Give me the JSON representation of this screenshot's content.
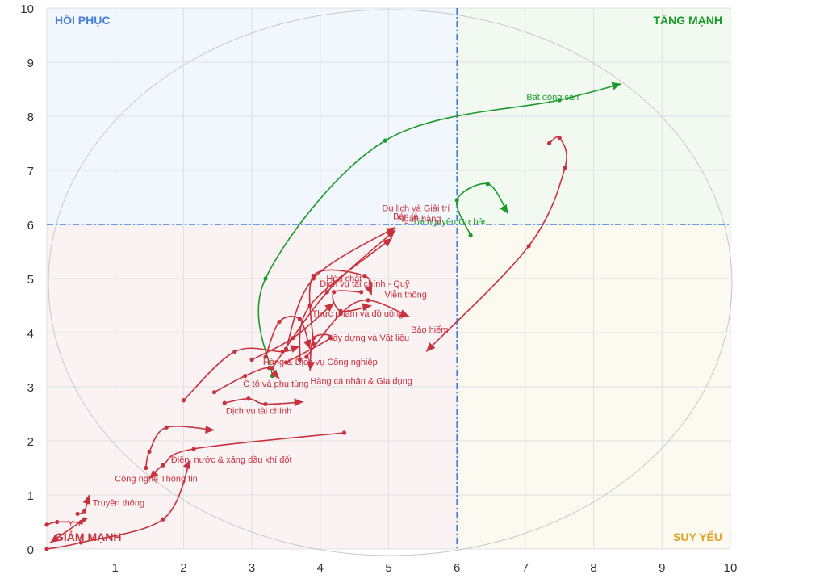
{
  "chart_data": {
    "type": "scatter",
    "xlim": [
      0,
      10
    ],
    "ylim": [
      0,
      10
    ],
    "x_ticks": [
      "1",
      "2",
      "3",
      "4",
      "5",
      "6",
      "7",
      "8",
      "9",
      "10"
    ],
    "y_ticks": [
      "0",
      "1",
      "2",
      "3",
      "4",
      "5",
      "6",
      "7",
      "8",
      "9",
      "10"
    ],
    "ref_x": 6,
    "ref_y": 6,
    "grid": true,
    "quadrants": [
      {
        "name": "HỒI PHỤC",
        "color": "#4a7fe0",
        "bg": "#f2f6fd",
        "pos": "top-left"
      },
      {
        "name": "TĂNG MẠNH",
        "color": "#1a9a2a",
        "bg": "#f1f9f1",
        "pos": "top-right"
      },
      {
        "name": "GIẢM MẠNH",
        "color": "#c8323e",
        "bg": "#fbf2f4",
        "pos": "bottom-left"
      },
      {
        "name": "SUY YẾU",
        "color": "#e0a020",
        "bg": "#fbf9f0",
        "pos": "bottom-right"
      }
    ],
    "series": [
      {
        "name": "Bất động sản",
        "color": "#1a9a2a",
        "label_xy": [
          7.4,
          8.3
        ],
        "points": [
          [
            3.3,
            3.2
          ],
          [
            3.2,
            5.0
          ],
          [
            4.95,
            7.55
          ],
          [
            7.5,
            8.3
          ],
          [
            8.4,
            8.6
          ]
        ]
      },
      {
        "name": "Tài nguyên Cơ bản",
        "color": "#1a9a2a",
        "label_xy": [
          5.9,
          6.0
        ],
        "points": [
          [
            6.2,
            5.8
          ],
          [
            6.0,
            6.45
          ],
          [
            6.45,
            6.75
          ],
          [
            6.75,
            6.2
          ]
        ]
      },
      {
        "name": "Bảo hiểm",
        "color": "#c8323e",
        "label_xy": [
          5.6,
          4.0
        ],
        "points": [
          [
            7.35,
            7.5
          ],
          [
            7.5,
            7.6
          ],
          [
            7.58,
            7.05
          ],
          [
            7.05,
            5.6
          ],
          [
            5.55,
            3.65
          ]
        ]
      },
      {
        "name": "Du lịch và Giải trí",
        "color": "#c8323e",
        "label_xy": [
          5.4,
          6.25
        ],
        "points": [
          [
            3.5,
            3.7
          ],
          [
            3.9,
            5.0
          ],
          [
            5.1,
            5.95
          ]
        ]
      },
      {
        "name": "Ngân hàng",
        "color": "#c8323e",
        "label_xy": [
          5.45,
          6.05
        ],
        "points": [
          [
            3.7,
            3.5
          ],
          [
            3.85,
            4.5
          ],
          [
            5.05,
            5.75
          ]
        ]
      },
      {
        "name": "Bán lẻ",
        "color": "#c8323e",
        "label_xy": [
          5.25,
          6.1
        ],
        "points": [
          [
            3.3,
            3.35
          ],
          [
            4.1,
            4.75
          ],
          [
            5.1,
            5.9
          ]
        ]
      },
      {
        "name": "Hóa chất",
        "color": "#c8323e",
        "label_xy": [
          4.35,
          4.95
        ],
        "points": [
          [
            3.9,
            3.8
          ],
          [
            3.9,
            5.05
          ],
          [
            4.65,
            5.05
          ],
          [
            4.75,
            4.7
          ]
        ]
      },
      {
        "name": "Dịch vụ tài chính - Quỹ",
        "color": "#c8323e",
        "label_xy": [
          4.65,
          4.85
        ],
        "points": [
          [
            3.8,
            3.55
          ],
          [
            4.3,
            4.35
          ],
          [
            4.7,
            4.6
          ],
          [
            5.3,
            4.3
          ]
        ]
      },
      {
        "name": "Viễn thông",
        "color": "#c8323e",
        "label_xy": [
          5.25,
          4.65
        ],
        "points": [
          [
            4.6,
            4.75
          ],
          [
            4.2,
            4.75
          ],
          [
            4.3,
            4.4
          ],
          [
            4.75,
            4.5
          ]
        ]
      },
      {
        "name": "Thực phẩm và đồ uống",
        "color": "#c8323e",
        "label_xy": [
          4.55,
          4.3
        ],
        "points": [
          [
            3.0,
            3.5
          ],
          [
            3.6,
            3.9
          ],
          [
            4.2,
            4.55
          ]
        ]
      },
      {
        "name": "Xây dựng và Vật liệu",
        "color": "#c8323e",
        "label_xy": [
          4.7,
          3.85
        ],
        "points": [
          [
            3.2,
            3.55
          ],
          [
            3.4,
            4.2
          ],
          [
            3.7,
            4.25
          ],
          [
            3.85,
            3.7
          ]
        ]
      },
      {
        "name": "Hàng & Dịch vụ Công nghiệp",
        "color": "#c8323e",
        "label_xy": [
          4.0,
          3.4
        ],
        "points": [
          [
            2.0,
            2.75
          ],
          [
            2.75,
            3.65
          ],
          [
            3.45,
            3.65
          ],
          [
            3.7,
            3.75
          ]
        ]
      },
      {
        "name": "Ô tô và phụ tùng",
        "color": "#c8323e",
        "label_xy": [
          3.35,
          3.0
        ],
        "points": [
          [
            2.45,
            2.9
          ],
          [
            2.9,
            3.2
          ],
          [
            3.25,
            3.35
          ],
          [
            3.4,
            3.15
          ]
        ]
      },
      {
        "name": "Hàng cá nhân & Gia dụng",
        "color": "#c8323e",
        "label_xy": [
          4.6,
          3.05
        ],
        "points": [
          [
            3.5,
            3.45
          ],
          [
            4.15,
            3.9
          ],
          [
            3.9,
            3.9
          ],
          [
            3.85,
            3.3
          ]
        ]
      },
      {
        "name": "Dịch vụ tài chính",
        "color": "#c8323e",
        "label_xy": [
          3.1,
          2.5
        ],
        "points": [
          [
            2.6,
            2.7
          ],
          [
            2.95,
            2.78
          ],
          [
            3.2,
            2.68
          ],
          [
            3.75,
            2.72
          ]
        ]
      },
      {
        "name": "Điện, nước & xăng dầu khí đốt",
        "color": "#c8323e",
        "label_xy": [
          2.7,
          1.6
        ],
        "points": [
          [
            4.35,
            2.15
          ],
          [
            2.15,
            1.85
          ],
          [
            1.7,
            1.55
          ],
          [
            1.5,
            1.3
          ]
        ]
      },
      {
        "name": "Công nghệ Thông tin",
        "color": "#c8323e",
        "label_xy": [
          1.6,
          1.25
        ],
        "points": [
          [
            1.45,
            1.5
          ],
          [
            1.5,
            1.8
          ],
          [
            1.75,
            2.25
          ],
          [
            2.45,
            2.2
          ]
        ]
      },
      {
        "name": "Truyền thông",
        "color": "#c8323e",
        "label_xy": [
          1.05,
          0.8
        ],
        "points": [
          [
            0.45,
            0.65
          ],
          [
            0.55,
            0.7
          ],
          [
            0.62,
            1.0
          ]
        ]
      },
      {
        "name": "Y tế",
        "color": "#c8323e",
        "label_xy": [
          0.42,
          0.42
        ],
        "points": [
          [
            0.0,
            0.45
          ],
          [
            0.15,
            0.5
          ],
          [
            0.5,
            0.5
          ],
          [
            0.55,
            0.55
          ],
          [
            0.05,
            0.12
          ]
        ]
      },
      {
        "name": "",
        "color": "#c8323e",
        "label_xy": [
          0,
          0
        ],
        "points": [
          [
            0.0,
            0.0
          ],
          [
            0.5,
            0.12
          ],
          [
            1.7,
            0.55
          ],
          [
            2.1,
            1.65
          ]
        ]
      }
    ]
  }
}
